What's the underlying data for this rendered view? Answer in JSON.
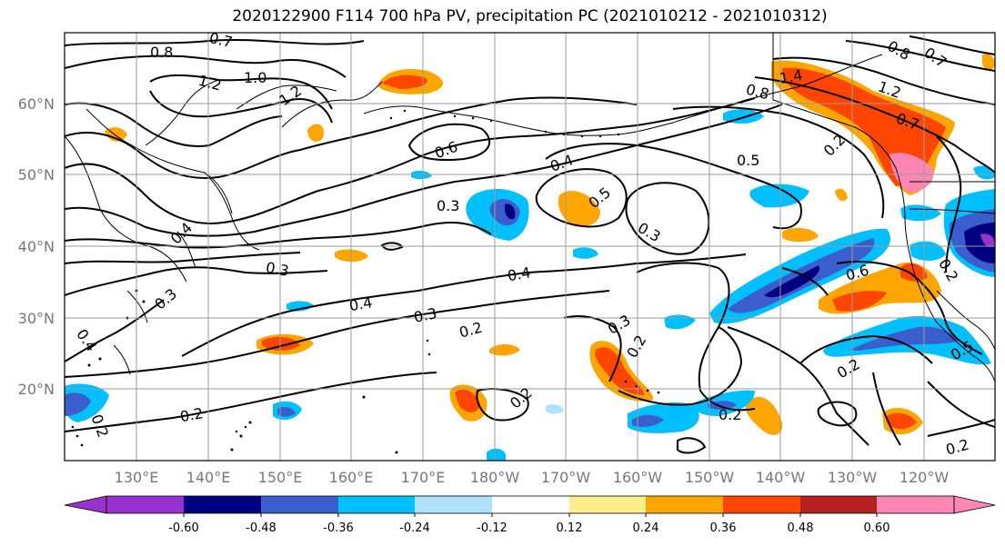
{
  "title": "2020122900 F114 700 hPa PV, precipitation PC (2021010212 - 2021010312)",
  "lat_labels": [
    "60°N",
    "50°N",
    "40°N",
    "30°N",
    "20°N"
  ],
  "lon_labels": [
    "130°E",
    "140°E",
    "150°E",
    "160°E",
    "170°E",
    "180°W",
    "170°W",
    "160°W",
    "150°W",
    "140°W",
    "130°W",
    "120°W"
  ],
  "contour_labels": [
    "0.8",
    "0.7",
    "1.2",
    "1.0",
    "1.2",
    "0.6",
    "0.4",
    "0.5",
    "0.3",
    "0.5",
    "0.3",
    "0.4",
    "0.3",
    "0.4",
    "0.3",
    "0.2",
    "0.3",
    "0.2",
    "0.2",
    "0.2",
    "0.2",
    "0.2",
    "0.6",
    "0.2",
    "1.4",
    "0.8",
    "1.2",
    "0.7",
    "0.8",
    "0.7",
    "0.4",
    "0.3",
    "0.4",
    "0.2",
    "0.2",
    "0.5",
    "0.2"
  ],
  "colorbar": {
    "colors": [
      "#9932cc",
      "#000080",
      "#3a5fcd",
      "#00bfff",
      "#b0e2ff",
      "#ffffff",
      "#ffee8c",
      "#ffa500",
      "#ff4500",
      "#b22222",
      "#ff86b4"
    ],
    "tick_labels": [
      "-0.60",
      "-0.48",
      "-0.36",
      "-0.24",
      "-0.12",
      "0.12",
      "0.24",
      "0.36",
      "0.48",
      "0.60"
    ]
  }
}
